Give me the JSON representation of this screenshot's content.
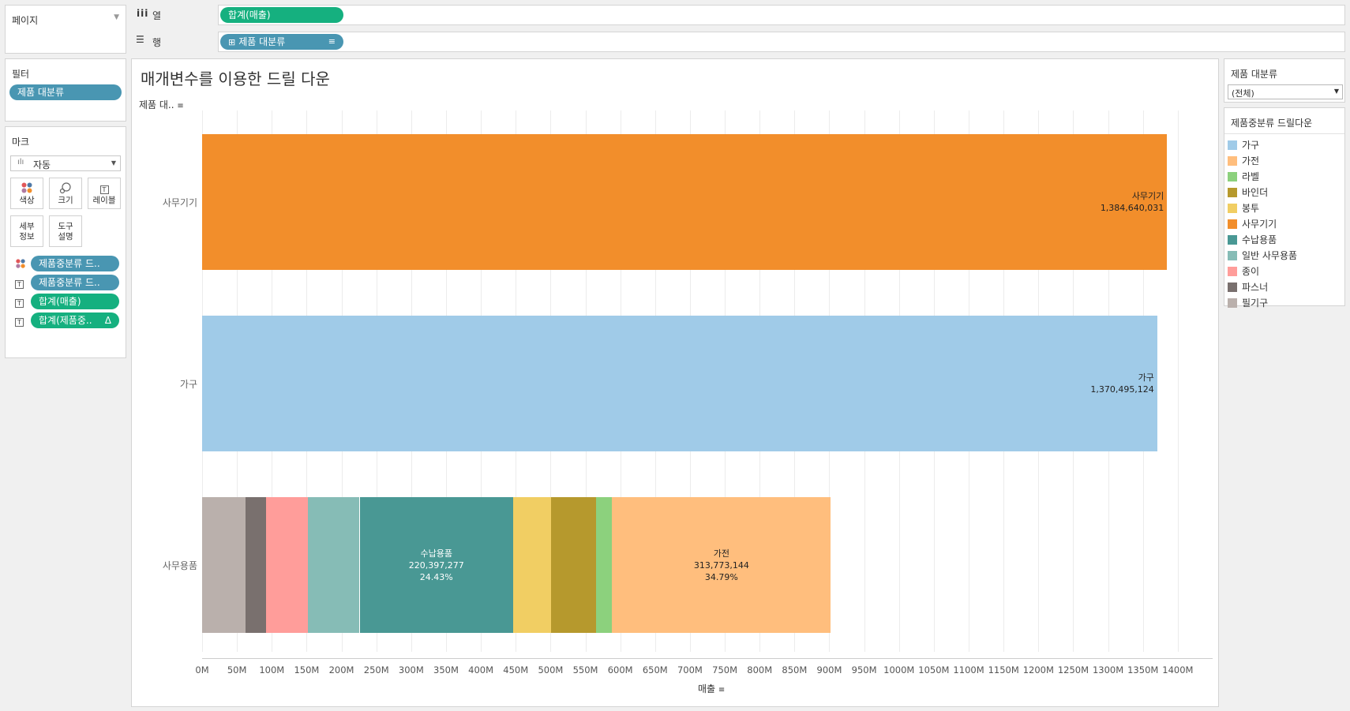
{
  "pages_card": {
    "title": "페이지"
  },
  "shelves": {
    "columns_label": "열",
    "columns_pill": "합계(매출)",
    "rows_label": "행",
    "rows_pill": "제품 대분류"
  },
  "filters_card": {
    "title": "필터",
    "pill": "제품 대분류"
  },
  "marks_card": {
    "title": "마크",
    "mark_type": "자동",
    "buttons": [
      {
        "label": "색상",
        "icon": "color-dots-icon"
      },
      {
        "label": "크기",
        "icon": "size-icon"
      },
      {
        "label": "레이블",
        "icon": "label-text-icon"
      },
      {
        "label_1": "세부",
        "label_2": "정보",
        "icon": "detail-icon"
      },
      {
        "label_1": "도구",
        "label_2": "설명",
        "icon": "tooltip-icon"
      }
    ],
    "fields": [
      {
        "label": "제품중분류 드..",
        "icon": "color-dots-icon"
      },
      {
        "label": "제품중분류 드..",
        "icon": "label-text-icon"
      },
      {
        "label": "합계(매출)",
        "icon": "label-text-icon"
      },
      {
        "label": "합계(제품중..",
        "icon": "label-text-icon",
        "suffix": "Δ"
      }
    ]
  },
  "view": {
    "title": "매개변수를 이용한 드릴 다운",
    "row_header": "제품 대..",
    "x_axis_title": "매출"
  },
  "parameter_card": {
    "title": "제품 대분류",
    "selected": "(전체)"
  },
  "legend": {
    "title": "제품중분류 드릴다운",
    "items": [
      {
        "label": "가구",
        "color": "#a0cbe8"
      },
      {
        "label": "가전",
        "color": "#ffbe7d"
      },
      {
        "label": "라벨",
        "color": "#8cd17d"
      },
      {
        "label": "바인더",
        "color": "#b6992d"
      },
      {
        "label": "봉투",
        "color": "#f1ce63"
      },
      {
        "label": "사무기기",
        "color": "#f28e2b"
      },
      {
        "label": "수납용품",
        "color": "#499894"
      },
      {
        "label": "일반 사무용품",
        "color": "#86bcb6"
      },
      {
        "label": "종이",
        "color": "#ff9d9a"
      },
      {
        "label": "파스너",
        "color": "#79706e"
      },
      {
        "label": "필기구",
        "color": "#bab0ac"
      }
    ]
  },
  "chart_data": {
    "type": "bar",
    "orientation": "horizontal-stacked",
    "title": "매개변수를 이용한 드릴 다운",
    "xlabel": "매출",
    "ylabel": "제품 대..",
    "categories": [
      "사무기기",
      "가구",
      "사무용품"
    ],
    "xlim": [
      0,
      1450000000
    ],
    "x_ticks": [
      "0M",
      "50M",
      "100M",
      "150M",
      "200M",
      "250M",
      "300M",
      "350M",
      "400M",
      "450M",
      "500M",
      "550M",
      "600M",
      "650M",
      "700M",
      "750M",
      "800M",
      "850M",
      "900M",
      "950M",
      "1000M",
      "1050M",
      "1100M",
      "1150M",
      "1200M",
      "1250M",
      "1300M",
      "1350M",
      "1400M"
    ],
    "tick_step": 50000000,
    "grid": true,
    "stacks": [
      {
        "category": "사무기기",
        "segments": [
          {
            "name": "사무기기",
            "value": 1384640031,
            "color": "#f28e2b",
            "labels": [
              "사무기기",
              "1,384,640,031"
            ]
          }
        ]
      },
      {
        "category": "가구",
        "segments": [
          {
            "name": "가구",
            "value": 1370495124,
            "color": "#a0cbe8",
            "labels": [
              "가구",
              "1,370,495,124"
            ]
          }
        ]
      },
      {
        "category": "사무용품",
        "segments": [
          {
            "name": "필기구",
            "value": 62000000,
            "color": "#bab0ac"
          },
          {
            "name": "파스너",
            "value": 30000000,
            "color": "#79706e"
          },
          {
            "name": "종이",
            "value": 60000000,
            "color": "#ff9d9a"
          },
          {
            "name": "일반 사무용품",
            "value": 74000000,
            "color": "#86bcb6"
          },
          {
            "name": "수납용품",
            "value": 220397277,
            "color": "#499894",
            "labels": [
              "수납용품",
              "220,397,277",
              "24.43%"
            ],
            "light_text": true
          },
          {
            "name": "봉투",
            "value": 54000000,
            "color": "#f1ce63"
          },
          {
            "name": "바인더",
            "value": 65000000,
            "color": "#b6992d"
          },
          {
            "name": "라벨",
            "value": 23000000,
            "color": "#8cd17d"
          },
          {
            "name": "가전",
            "value": 313773144,
            "color": "#ffbe7d",
            "labels": [
              "가전",
              "313,773,144",
              "34.79%"
            ]
          }
        ]
      }
    ]
  }
}
